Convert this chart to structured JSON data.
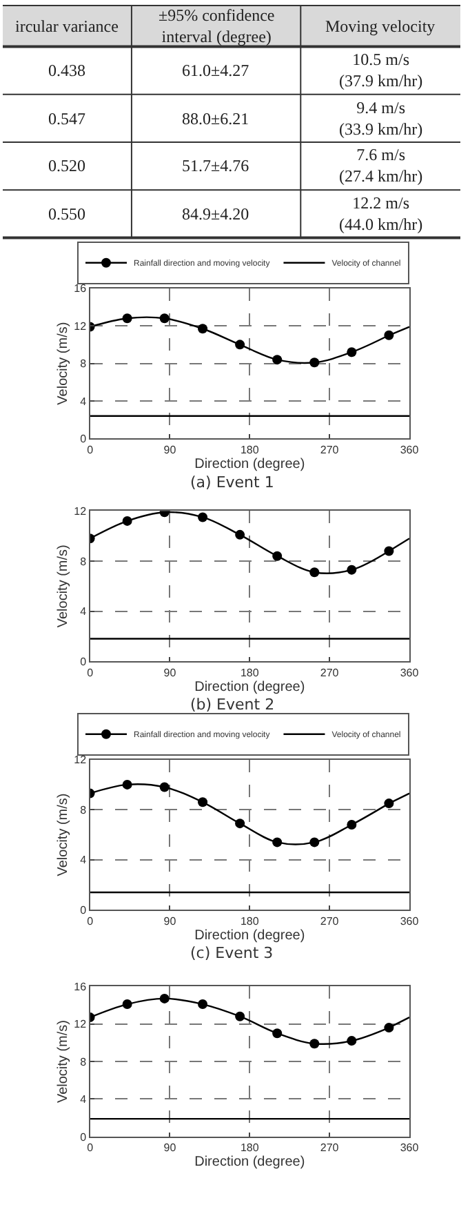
{
  "chart_data": [
    {
      "type": "other",
      "annotations": [
        "ircular variance",
        "±95% confidence\ninterval (degree)",
        "Moving velocity",
        "0.438",
        "61.0±4.27",
        "10.5 m/s\n(37.9 km/hr)",
        "0.547",
        "88.0±6.21",
        "9.4 m/s\n(33.9 km/hr)",
        "0.520",
        "51.7±4.76",
        "7.6 m/s\n(27.4 km/hr)",
        "0.550",
        "84.9±4.20",
        "12.2 m/s\n(44.0 km/hr)"
      ]
    },
    {
      "type": "line",
      "xlabel": "Direction (degree)",
      "ylabel": "Velocity (m/s)",
      "annotations": [
        "(a) Event 1"
      ],
      "xlim": [
        0,
        360
      ],
      "xticks": [
        0,
        90,
        180,
        270,
        360
      ],
      "ylim": [
        0,
        16
      ],
      "yticks": [
        0,
        4,
        8,
        12,
        16
      ],
      "grid": true,
      "legend": "top right",
      "series": [
        {
          "name": "Rainfall direction and moving velocity",
          "color": "#000000",
          "marker": "circle",
          "x": [
            0,
            42,
            84,
            127,
            169,
            211,
            253,
            295,
            337
          ],
          "values": [
            11.9,
            12.8,
            12.8,
            11.7,
            10.0,
            8.4,
            8.1,
            9.2,
            11.0
          ]
        },
        {
          "color": "#000000",
          "marker": "none",
          "x": [
            337,
            360
          ],
          "values": [
            11.0,
            11.9
          ]
        },
        {
          "name": "Velocity of channel",
          "color": "#000000",
          "marker": "none",
          "x": [
            0,
            360
          ],
          "values": [
            2.4,
            2.4
          ]
        }
      ]
    },
    {
      "type": "line",
      "xlabel": "Direction (degree)",
      "ylabel": "Velocity (m/s)",
      "annotations": [
        "(b) Event 2"
      ],
      "xlim": [
        0,
        360
      ],
      "xticks": [
        0,
        90,
        180,
        270,
        360
      ],
      "ylim": [
        0,
        12
      ],
      "yticks": [
        0,
        4,
        8,
        12
      ],
      "grid": true,
      "series": [
        {
          "color": "#000000",
          "marker": "circle",
          "x": [
            0,
            42,
            84,
            127,
            169,
            211,
            253,
            295,
            337
          ],
          "values": [
            9.8,
            11.2,
            11.9,
            11.5,
            10.1,
            8.4,
            7.1,
            7.3,
            8.8
          ]
        },
        {
          "color": "#000000",
          "marker": "none",
          "x": [
            337,
            360
          ],
          "values": [
            8.8,
            9.8
          ]
        },
        {
          "color": "#000000",
          "marker": "none",
          "x": [
            0,
            360
          ],
          "values": [
            1.8,
            1.8
          ]
        }
      ]
    },
    {
      "type": "line",
      "xlabel": "Direction (degree)",
      "ylabel": "Velocity (m/s)",
      "annotations": [
        "(c) Event 3"
      ],
      "xlim": [
        0,
        360
      ],
      "xticks": [
        0,
        90,
        180,
        270,
        360
      ],
      "ylim": [
        0,
        12
      ],
      "yticks": [
        0,
        4,
        8,
        12
      ],
      "grid": true,
      "legend": "top right",
      "series": [
        {
          "name": "Rainfall direction and moving velocity",
          "color": "#000000",
          "marker": "circle",
          "x": [
            0,
            42,
            84,
            127,
            169,
            211,
            253,
            295,
            337
          ],
          "values": [
            9.3,
            10.0,
            9.8,
            8.6,
            6.9,
            5.4,
            5.4,
            6.8,
            8.5
          ]
        },
        {
          "color": "#000000",
          "marker": "none",
          "x": [
            337,
            360
          ],
          "values": [
            8.5,
            9.3
          ]
        },
        {
          "name": "Velocity of channel",
          "color": "#000000",
          "marker": "none",
          "x": [
            0,
            360
          ],
          "values": [
            1.4,
            1.4
          ]
        }
      ]
    },
    {
      "type": "line",
      "xlabel": "Direction (degree)",
      "ylabel": "Velocity (m/s)",
      "xlim": [
        0,
        360
      ],
      "xticks": [
        0,
        90,
        180,
        270,
        360
      ],
      "ylim": [
        0,
        16
      ],
      "yticks": [
        0,
        4,
        8,
        12,
        16
      ],
      "grid": true,
      "series": [
        {
          "color": "#000000",
          "marker": "circle",
          "x": [
            0,
            42,
            84,
            127,
            169,
            211,
            253,
            295,
            337
          ],
          "values": [
            12.7,
            14.1,
            14.7,
            14.1,
            12.8,
            11.0,
            9.9,
            10.2,
            11.6
          ]
        },
        {
          "color": "#000000",
          "marker": "none",
          "x": [
            337,
            360
          ],
          "values": [
            11.6,
            12.7
          ]
        },
        {
          "color": "#000000",
          "marker": "none",
          "x": [
            0,
            360
          ],
          "values": [
            1.9,
            1.9
          ]
        }
      ]
    }
  ]
}
